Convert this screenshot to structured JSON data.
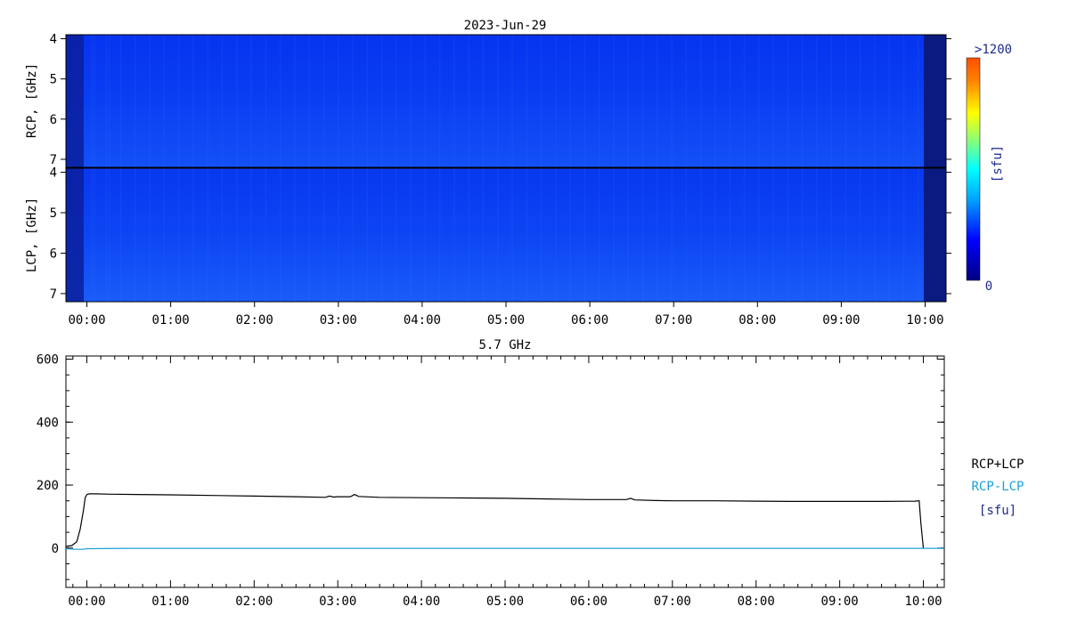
{
  "chart_data": [
    {
      "type": "heatmap",
      "title": "2023-Jun-29",
      "ylabel": "RCP, [GHz]",
      "ylim": [
        3.9,
        7.2
      ],
      "yticks": [
        "4",
        "5",
        "6",
        "7"
      ],
      "xticks": [
        "00:00",
        "01:00",
        "02:00",
        "03:00",
        "04:00",
        "05:00",
        "06:00",
        "07:00",
        "08:00",
        "09:00",
        "10:00"
      ],
      "xlim_hours": [
        -0.25,
        10.25
      ]
    },
    {
      "type": "heatmap",
      "title": "",
      "ylabel": "LCP, [GHz]",
      "ylim": [
        3.9,
        7.2
      ],
      "yticks": [
        "4",
        "5",
        "6",
        "7"
      ],
      "xticks": [
        "00:00",
        "01:00",
        "02:00",
        "03:00",
        "04:00",
        "05:00",
        "06:00",
        "07:00",
        "08:00",
        "09:00",
        "10:00"
      ],
      "xlim_hours": [
        -0.25,
        10.25
      ]
    },
    {
      "type": "line",
      "title": "5.7 GHz",
      "ylabel": "",
      "ylim": [
        -125,
        610
      ],
      "yticks": [
        "0",
        "200",
        "400",
        "600"
      ],
      "xticks": [
        "00:00",
        "01:00",
        "02:00",
        "03:00",
        "04:00",
        "05:00",
        "06:00",
        "07:00",
        "08:00",
        "09:00",
        "10:00"
      ],
      "xlim_hours": [
        -0.25,
        10.25
      ],
      "legend": [
        "RCP+LCP",
        "RCP-LCP"
      ],
      "unit": "[sfu]",
      "series": [
        {
          "name": "RCP+LCP",
          "color": "#000000",
          "x": [
            -0.25,
            -0.18,
            -0.12,
            -0.08,
            -0.04,
            -0.02,
            0.0,
            0.03,
            0.1,
            0.3,
            0.6,
            1.0,
            1.5,
            2.0,
            2.5,
            2.85,
            2.9,
            2.95,
            3.0,
            3.15,
            3.2,
            3.25,
            3.5,
            4.0,
            4.5,
            5.0,
            5.5,
            6.0,
            6.45,
            6.5,
            6.55,
            6.8,
            7.0,
            7.5,
            8.0,
            8.5,
            9.0,
            9.5,
            9.9,
            9.95,
            9.97,
            10.0
          ],
          "y": [
            5,
            8,
            20,
            60,
            120,
            160,
            170,
            172,
            172,
            171,
            170,
            169,
            167,
            165,
            163,
            161,
            165,
            162,
            163,
            163,
            170,
            164,
            161,
            160,
            159,
            158,
            156,
            154,
            154,
            158,
            153,
            151,
            150,
            150,
            149,
            148,
            148,
            148,
            149,
            150,
            80,
            0
          ]
        },
        {
          "name": "RCP-LCP",
          "color": "#1aa0d8",
          "x": [
            -0.25,
            -0.15,
            -0.05,
            0.0,
            0.5,
            1.0,
            2.0,
            3.0,
            4.0,
            5.0,
            6.0,
            7.0,
            8.0,
            9.0,
            10.0,
            10.25
          ],
          "y": [
            -2,
            -4,
            -4,
            -2,
            -1,
            -1,
            -1,
            -1,
            -1,
            -1,
            -1,
            -1,
            -1,
            -1,
            -1,
            -1
          ]
        }
      ]
    }
  ],
  "colorbar": {
    "max_label": ">1200",
    "min_label": "0",
    "unit": "[sfu]",
    "colors": [
      "#000080",
      "#0000ff",
      "#00a0ff",
      "#00ffff",
      "#80ff80",
      "#ffff00",
      "#ff8000",
      "#ff4000"
    ]
  },
  "heatmap_colors": {
    "base": "#0a3cf2",
    "quiet_edge": "#0a1a8c",
    "bright": "#1f70ff"
  }
}
